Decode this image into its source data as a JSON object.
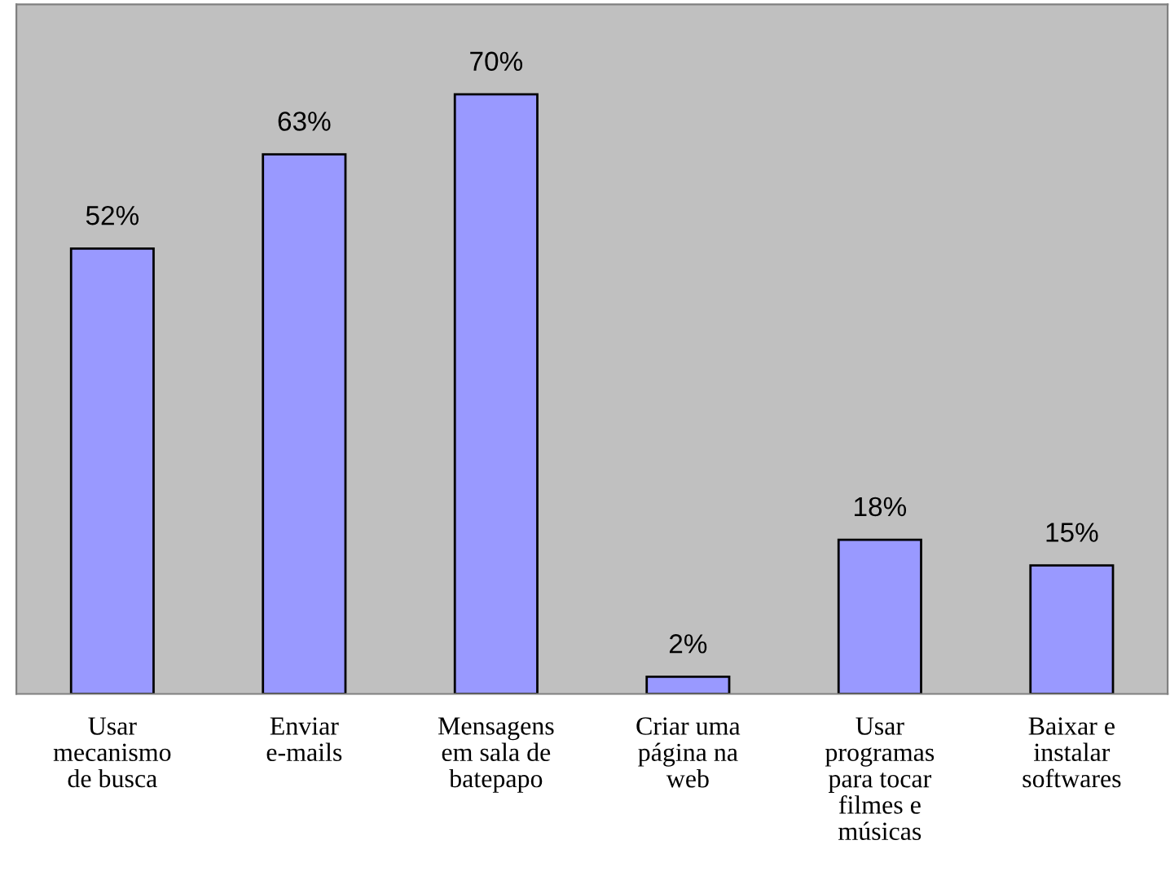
{
  "chart_data": {
    "type": "bar",
    "categories": [
      "Usar\nmecanismo\nde busca",
      "Enviar\ne-mails",
      "Mensagens\nem sala de\nbatepapo",
      "Criar uma\npágina na\nweb",
      "Usar\nprogramas\npara tocar\nfilmes e\nmúsicas",
      "Baixar e\ninstalar\nsoftwares"
    ],
    "values": [
      52,
      63,
      70,
      2,
      18,
      15
    ],
    "value_labels": [
      "52%",
      "63%",
      "70%",
      "2%",
      "18%",
      "15%"
    ],
    "color": "#9999ff"
  }
}
